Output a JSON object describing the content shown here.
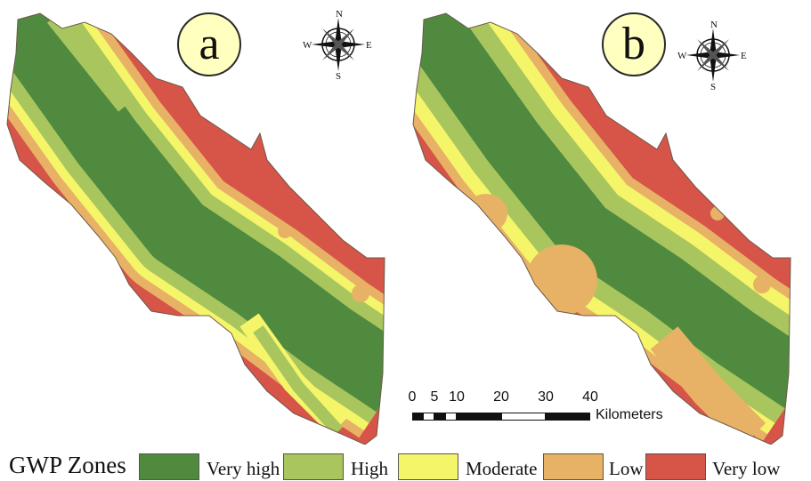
{
  "panels": [
    {
      "label": "a"
    },
    {
      "label": "b"
    }
  ],
  "compass": {
    "n": "N",
    "s": "S",
    "e": "E",
    "w": "W"
  },
  "scale_bar": {
    "ticks": [
      "0",
      "5",
      "10",
      "20",
      "30",
      "40"
    ],
    "unit": "Kilometers"
  },
  "legend": {
    "title": "GWP Zones",
    "classes": [
      {
        "label": "Very high",
        "color": "#4f8a3f"
      },
      {
        "label": "High",
        "color": "#a9c55e"
      },
      {
        "label": "Moderate",
        "color": "#f5f56a"
      },
      {
        "label": "Low",
        "color": "#e8b266"
      },
      {
        "label": "Very low",
        "color": "#d65448"
      }
    ]
  }
}
